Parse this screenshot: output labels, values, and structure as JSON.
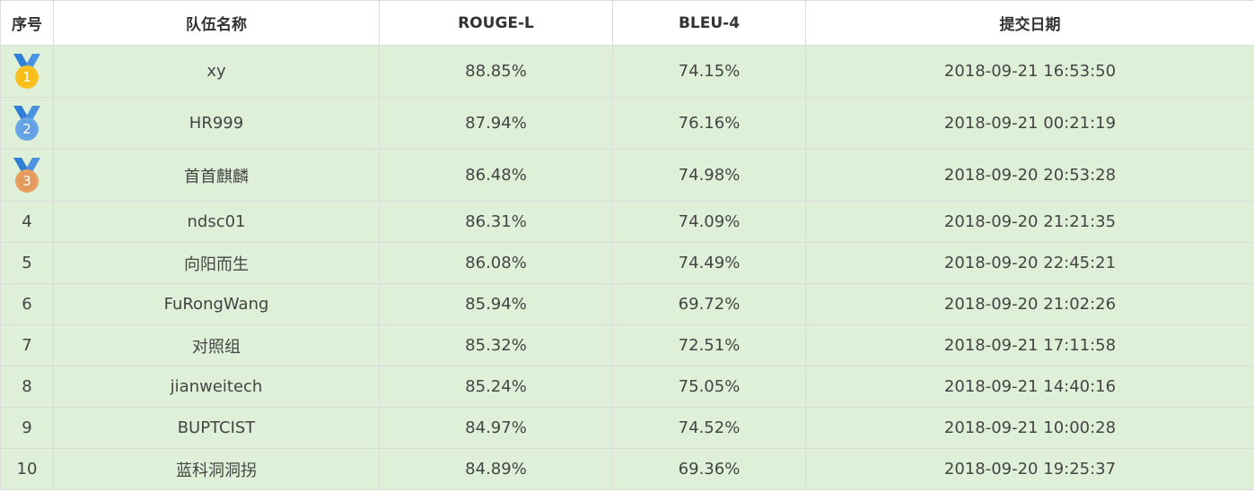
{
  "headers": {
    "rank": "序号",
    "team": "队伍名称",
    "rouge": "ROUGE-L",
    "bleu": "BLEU-4",
    "date": "提交日期"
  },
  "colors": {
    "gold": "#f7c226",
    "silver": "#6aa7e8",
    "bronze": "#e8a064",
    "ribbon": "#2f7fd6",
    "row_bg": "#dff0d8"
  },
  "rows": [
    {
      "rank": "1",
      "medal": "gold-medal-icon",
      "team": "xy",
      "rouge": "88.85%",
      "bleu": "74.15%",
      "date": "2018-09-21 16:53:50"
    },
    {
      "rank": "2",
      "medal": "silver-medal-icon",
      "team": "HR999",
      "rouge": "87.94%",
      "bleu": "76.16%",
      "date": "2018-09-21 00:21:19"
    },
    {
      "rank": "3",
      "medal": "bronze-medal-icon",
      "team": "首首麒麟",
      "rouge": "86.48%",
      "bleu": "74.98%",
      "date": "2018-09-20 20:53:28"
    },
    {
      "rank": "4",
      "team": "ndsc01",
      "rouge": "86.31%",
      "bleu": "74.09%",
      "date": "2018-09-20 21:21:35"
    },
    {
      "rank": "5",
      "team": "向阳而生",
      "rouge": "86.08%",
      "bleu": "74.49%",
      "date": "2018-09-20 22:45:21"
    },
    {
      "rank": "6",
      "team": "FuRongWang",
      "rouge": "85.94%",
      "bleu": "69.72%",
      "date": "2018-09-20 21:02:26"
    },
    {
      "rank": "7",
      "team": "对照组",
      "rouge": "85.32%",
      "bleu": "72.51%",
      "date": "2018-09-21 17:11:58"
    },
    {
      "rank": "8",
      "team": "jianweitech",
      "rouge": "85.24%",
      "bleu": "75.05%",
      "date": "2018-09-21 14:40:16"
    },
    {
      "rank": "9",
      "team": "BUPTCIST",
      "rouge": "84.97%",
      "bleu": "74.52%",
      "date": "2018-09-21 10:00:28"
    },
    {
      "rank": "10",
      "team": "蓝科洞洞拐",
      "rouge": "84.89%",
      "bleu": "69.36%",
      "date": "2018-09-20 19:25:37"
    }
  ]
}
